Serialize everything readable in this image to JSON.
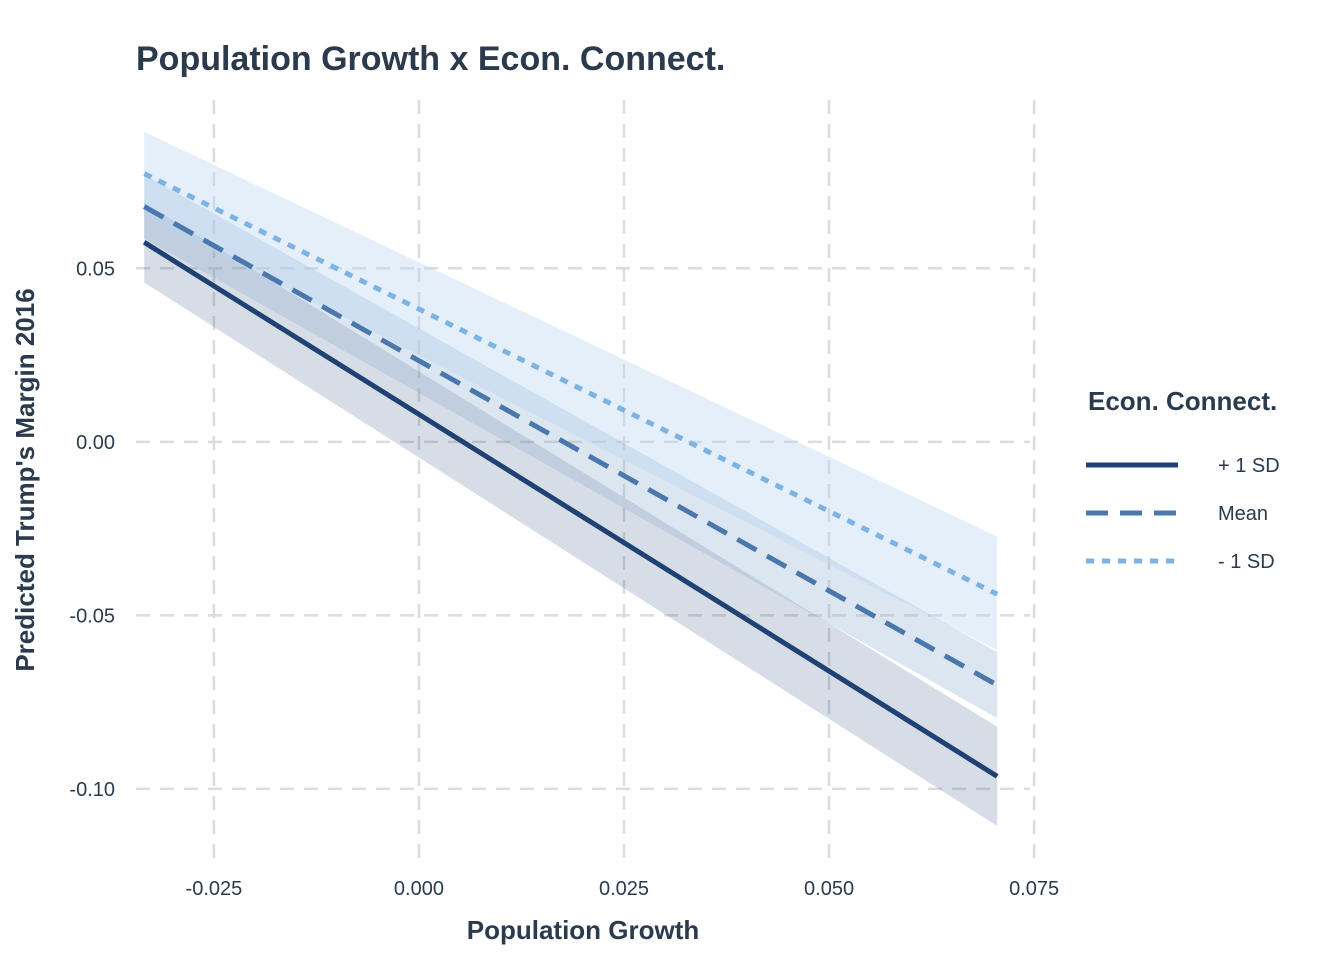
{
  "chart_data": {
    "type": "line",
    "title": "Population Growth x Econ. Connect.",
    "xlabel": "Population Growth",
    "ylabel": "Predicted Trump's Margin 2016",
    "xlim": [
      -0.0345,
      0.0745
    ],
    "ylim": [
      -0.1205,
      0.0985
    ],
    "x_ticks": [
      -0.025,
      0.0,
      0.025,
      0.05,
      0.075
    ],
    "x_tick_labels": [
      "-0.025",
      "0.000",
      "0.025",
      "0.050",
      "0.075"
    ],
    "y_ticks": [
      -0.1,
      -0.05,
      0.0,
      0.05
    ],
    "y_tick_labels": [
      "-0.10",
      "-0.05",
      "0.00",
      "0.05"
    ],
    "grid": true,
    "legend": {
      "title": "Econ. Connect.",
      "position": "right"
    },
    "series": [
      {
        "name": "+ 1 SD",
        "color": "#1f4274",
        "dash": "solid",
        "x": [
          -0.0335,
          0.0705
        ],
        "y": [
          0.0575,
          -0.0964
        ],
        "ci_lower": [
          0.0459,
          -0.1107
        ],
        "ci_upper": [
          0.0689,
          -0.0821
        ],
        "band_color": "#1f4274",
        "band_opacity": 0.18
      },
      {
        "name": "Mean",
        "color": "#4a78ad",
        "dash": "dashed",
        "x": [
          -0.0335,
          0.0705
        ],
        "y": [
          0.0678,
          -0.0701
        ],
        "ci_lower": [
          0.0586,
          -0.0796
        ],
        "ci_upper": [
          0.077,
          -0.0606
        ],
        "band_color": "#8cadd0",
        "band_opacity": 0.3
      },
      {
        "name": "- 1 SD",
        "color": "#7db3e3",
        "dash": "dotted",
        "x": [
          -0.0335,
          0.0705
        ],
        "y": [
          0.0773,
          -0.0439
        ],
        "ci_lower": [
          0.0652,
          -0.06
        ],
        "ci_upper": [
          0.0893,
          -0.0273
        ],
        "band_color": "#b8d5f2",
        "band_opacity": 0.38
      }
    ]
  }
}
